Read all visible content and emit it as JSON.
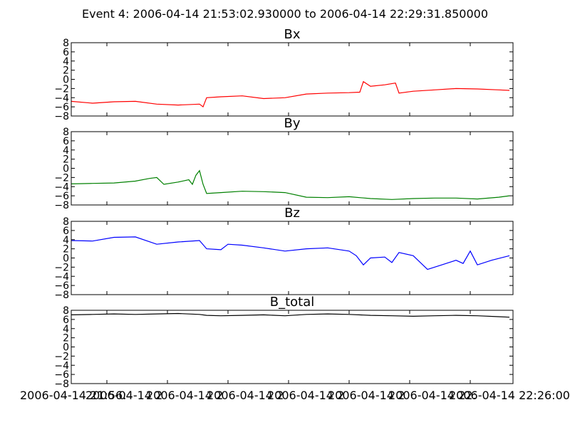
{
  "figure": {
    "suptitle": "Event 4: 2006-04-14 21:53:02.930000 to 2006-04-14 22:29:31.850000"
  },
  "chart_data": [
    {
      "type": "line",
      "title": "Bx",
      "ylim": [
        -8,
        8
      ],
      "yticks": [
        8,
        6,
        4,
        2,
        0,
        -2,
        -4,
        -6,
        -8
      ],
      "series": [
        {
          "color": "#ff0000",
          "x": [
            0,
            30,
            60,
            90,
            120,
            150,
            180,
            185,
            190,
            210,
            240,
            270,
            300,
            330,
            360,
            390,
            405,
            410,
            420,
            440,
            455,
            460,
            480,
            510,
            540,
            570,
            600,
            615
          ],
          "y": [
            -4.8,
            -5.2,
            -4.9,
            -4.8,
            -5.4,
            -5.6,
            -5.4,
            -6.0,
            -4.0,
            -3.8,
            -3.6,
            -4.2,
            -4.0,
            -3.2,
            -3.0,
            -2.9,
            -2.8,
            -0.5,
            -1.5,
            -1.2,
            -0.8,
            -3.0,
            -2.6,
            -2.3,
            -2.0,
            -2.1,
            -2.3,
            -2.4
          ]
        }
      ]
    },
    {
      "type": "line",
      "title": "By",
      "ylim": [
        -8,
        8
      ],
      "yticks": [
        8,
        6,
        4,
        2,
        0,
        -2,
        -4,
        -6,
        -8
      ],
      "series": [
        {
          "color": "#008000",
          "x": [
            0,
            30,
            60,
            90,
            110,
            120,
            130,
            150,
            165,
            170,
            175,
            180,
            185,
            190,
            210,
            240,
            270,
            300,
            330,
            360,
            390,
            420,
            450,
            480,
            510,
            540,
            570,
            600,
            615
          ],
          "y": [
            -3.4,
            -3.3,
            -3.2,
            -2.8,
            -2.2,
            -2.0,
            -3.5,
            -3.0,
            -2.5,
            -3.5,
            -1.5,
            -0.5,
            -3.5,
            -5.5,
            -5.3,
            -5.0,
            -5.1,
            -5.3,
            -6.3,
            -6.4,
            -6.2,
            -6.6,
            -6.8,
            -6.6,
            -6.5,
            -6.5,
            -6.7,
            -6.3,
            -6.0
          ]
        }
      ]
    },
    {
      "type": "line",
      "title": "Bz",
      "ylim": [
        -8,
        8
      ],
      "yticks": [
        8,
        6,
        4,
        2,
        0,
        -2,
        -4,
        -6,
        -8
      ],
      "series": [
        {
          "color": "#0000ff",
          "x": [
            0,
            30,
            60,
            90,
            120,
            150,
            180,
            190,
            210,
            220,
            240,
            270,
            300,
            330,
            360,
            390,
            400,
            410,
            420,
            440,
            450,
            460,
            480,
            500,
            520,
            540,
            550,
            560,
            570,
            590,
            615
          ],
          "y": [
            3.8,
            3.7,
            4.5,
            4.6,
            3.0,
            3.5,
            3.8,
            2.0,
            1.8,
            3.0,
            2.8,
            2.2,
            1.5,
            2.0,
            2.2,
            1.5,
            0.5,
            -1.5,
            0.0,
            0.2,
            -1.0,
            1.2,
            0.5,
            -2.5,
            -1.5,
            -0.5,
            -1.2,
            1.5,
            -1.5,
            -0.5,
            0.5
          ]
        }
      ]
    },
    {
      "type": "line",
      "title": "B_total",
      "ylim": [
        -8,
        8
      ],
      "yticks": [
        8,
        6,
        4,
        2,
        0,
        -2,
        -4,
        -6,
        -8
      ],
      "xticklabels": [
        "2006-04-14 21:56:",
        "2006-04-14 2",
        "2006-04-14 2",
        "2006-04-14 2",
        "2006-04-14 2",
        "2006-04-14 2",
        "2006-04-14 22:",
        "2006-04-14 22:26:00.000000"
      ],
      "series": [
        {
          "color": "#000000",
          "x": [
            0,
            30,
            60,
            90,
            120,
            150,
            180,
            190,
            210,
            240,
            270,
            300,
            330,
            360,
            390,
            420,
            450,
            480,
            510,
            540,
            570,
            600,
            615
          ],
          "y": [
            7.0,
            7.1,
            7.2,
            7.1,
            7.2,
            7.3,
            7.1,
            6.9,
            6.8,
            6.9,
            7.0,
            6.8,
            7.1,
            7.2,
            7.1,
            6.9,
            6.8,
            6.7,
            6.8,
            6.9,
            6.8,
            6.6,
            6.5
          ]
        }
      ]
    }
  ]
}
